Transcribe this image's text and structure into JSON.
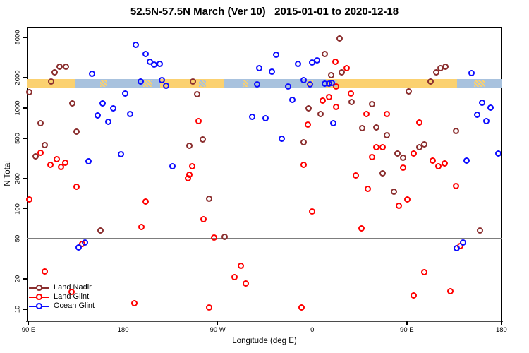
{
  "chart_data": {
    "type": "scatter",
    "title": "52.5N-57.5N March (Ver 10)   2015-01-01 to 2020-12-18",
    "xlabel": "Longitude (deg E)",
    "ylabel": "N Total",
    "x_axis": {
      "min": 90,
      "max": 540,
      "ticks": [
        {
          "pos": 90,
          "label": "90 E"
        },
        {
          "pos": 180,
          "label": "180"
        },
        {
          "pos": 270,
          "label": "90 W"
        },
        {
          "pos": 360,
          "label": "0"
        },
        {
          "pos": 450,
          "label": "90 E"
        },
        {
          "pos": 540,
          "label": "180"
        }
      ]
    },
    "y_axis": {
      "scale": "log",
      "min": 10,
      "max": 6300,
      "ticks": [
        5000,
        2000,
        1000,
        500,
        200,
        100,
        50,
        20,
        10
      ]
    },
    "reference_line": {
      "value": 50,
      "color": "#7d7d7d"
    },
    "surface_strip": {
      "meaning": "land vs ocean surface along 52.5N-57.5N",
      "value_top": 1700,
      "value_bottom": 1400,
      "land_color": "#FBD170",
      "ocean_color": "#A8C2DE",
      "segments": [
        {
          "from": 88,
          "to": 134,
          "type": "land"
        },
        {
          "from": 134,
          "to": 215,
          "type": "ocean"
        },
        {
          "from": 215,
          "to": 276,
          "type": "land"
        },
        {
          "from": 276,
          "to": 373,
          "type": "ocean"
        },
        {
          "from": 373,
          "to": 498,
          "type": "land"
        },
        {
          "from": 498,
          "to": 541,
          "type": "ocean"
        }
      ],
      "patches": [
        {
          "from": 158,
          "to": 164,
          "type": "land"
        },
        {
          "from": 199,
          "to": 208,
          "type": "land"
        },
        {
          "from": 252,
          "to": 259,
          "type": "ocean"
        },
        {
          "from": 294,
          "to": 299,
          "type": "land"
        },
        {
          "from": 355,
          "to": 361,
          "type": "land"
        },
        {
          "from": 379,
          "to": 384,
          "type": "ocean"
        },
        {
          "from": 436,
          "to": 443,
          "type": "land"
        },
        {
          "from": 514,
          "to": 524,
          "type": "land"
        }
      ]
    },
    "legend_position": "bottom-left",
    "series": [
      {
        "name": "Land Nadir",
        "color": "#8B2F2F",
        "points": [
          [
            120,
            2540
          ],
          [
            126,
            2540
          ],
          [
            115,
            2240
          ],
          [
            112,
            1810
          ],
          [
            91,
            1440
          ],
          [
            132,
            1100
          ],
          [
            102,
            700
          ],
          [
            136,
            578
          ],
          [
            106,
            425
          ],
          [
            97,
            327
          ],
          [
            386,
            4900
          ],
          [
            372,
            3400
          ],
          [
            378,
            2090
          ],
          [
            388,
            2240
          ],
          [
            247,
            1810
          ],
          [
            251,
            1370
          ],
          [
            357,
            980
          ],
          [
            368,
            860
          ],
          [
            256,
            482
          ],
          [
            243,
            418
          ],
          [
            352,
            452
          ],
          [
            478,
            2240
          ],
          [
            482,
            2460
          ],
          [
            487,
            2540
          ],
          [
            473,
            1810
          ],
          [
            452,
            1460
          ],
          [
            398,
            1135
          ],
          [
            417,
            1080
          ],
          [
            408,
            628
          ],
          [
            421,
            638
          ],
          [
            467,
            431
          ],
          [
            497,
            586
          ],
          [
            431,
            531
          ],
          [
            441,
            348
          ],
          [
            447,
            317
          ],
          [
            462,
            403
          ],
          [
            427,
            222
          ],
          [
            159,
            60
          ],
          [
            262,
            124
          ],
          [
            277,
            52
          ],
          [
            438,
            146
          ],
          [
            520,
            60
          ]
        ]
      },
      {
        "name": "Land Glint",
        "color": "#FF0000",
        "points": [
          [
            102,
            356
          ],
          [
            117,
            308
          ],
          [
            125,
            283
          ],
          [
            111,
            270
          ],
          [
            121,
            257
          ],
          [
            91,
            123
          ],
          [
            136,
            164
          ],
          [
            202,
            117
          ],
          [
            198,
            65
          ],
          [
            141,
            44
          ],
          [
            106,
            23.5
          ],
          [
            131,
            14.7
          ],
          [
            191,
            11.4
          ],
          [
            242,
            199
          ],
          [
            360,
            93
          ],
          [
            257,
            78
          ],
          [
            267,
            51
          ],
          [
            292,
            27
          ],
          [
            286,
            20.7
          ],
          [
            297,
            17.9
          ],
          [
            262,
            10.3
          ],
          [
            350,
            10.3
          ],
          [
            382,
            2870
          ],
          [
            383,
            1620
          ],
          [
            370,
            1170
          ],
          [
            376,
            1270
          ],
          [
            383,
            1010
          ],
          [
            252,
            740
          ],
          [
            356,
            680
          ],
          [
            246,
            262
          ],
          [
            352,
            270
          ],
          [
            243,
            215
          ],
          [
            393,
            2460
          ],
          [
            397,
            1390
          ],
          [
            412,
            870
          ],
          [
            431,
            860
          ],
          [
            462,
            710
          ],
          [
            421,
            403
          ],
          [
            427,
            403
          ],
          [
            417,
            322
          ],
          [
            457,
            352
          ],
          [
            475,
            296
          ],
          [
            480,
            262
          ],
          [
            486,
            278
          ],
          [
            447,
            253
          ],
          [
            402,
            212
          ],
          [
            413,
            156
          ],
          [
            451,
            122
          ],
          [
            443,
            106
          ],
          [
            497,
            166
          ],
          [
            407,
            63
          ],
          [
            501,
            42
          ],
          [
            467,
            23.2
          ],
          [
            457,
            13.6
          ],
          [
            492,
            15
          ]
        ]
      },
      {
        "name": "Ocean Glint",
        "color": "#0D0DFF",
        "points": [
          [
            192,
            4200
          ],
          [
            202,
            3400
          ],
          [
            206,
            2860
          ],
          [
            210,
            2680
          ],
          [
            215,
            2720
          ],
          [
            151,
            2170
          ],
          [
            197,
            1810
          ],
          [
            217,
            1880
          ],
          [
            221,
            1640
          ],
          [
            182,
            1390
          ],
          [
            161,
            1100
          ],
          [
            171,
            990
          ],
          [
            156,
            845
          ],
          [
            187,
            870
          ],
          [
            166,
            730
          ],
          [
            147,
            293
          ],
          [
            178,
            345
          ],
          [
            227,
            262
          ],
          [
            326,
            3340
          ],
          [
            310,
            2490
          ],
          [
            347,
            2720
          ],
          [
            360,
            2800
          ],
          [
            365,
            2950
          ],
          [
            322,
            2280
          ],
          [
            308,
            1700
          ],
          [
            337,
            1620
          ],
          [
            352,
            1880
          ],
          [
            358,
            1700
          ],
          [
            372,
            1730
          ],
          [
            376,
            1730
          ],
          [
            379,
            1760
          ],
          [
            341,
            1190
          ],
          [
            303,
            810
          ],
          [
            316,
            780
          ],
          [
            331,
            490
          ],
          [
            380,
            700
          ],
          [
            512,
            2220
          ],
          [
            522,
            1125
          ],
          [
            530,
            1000
          ],
          [
            517,
            850
          ],
          [
            526,
            740
          ],
          [
            507,
            296
          ],
          [
            537,
            348
          ],
          [
            504,
            46
          ],
          [
            498,
            40
          ],
          [
            144,
            46
          ],
          [
            138,
            41
          ]
        ]
      }
    ]
  }
}
